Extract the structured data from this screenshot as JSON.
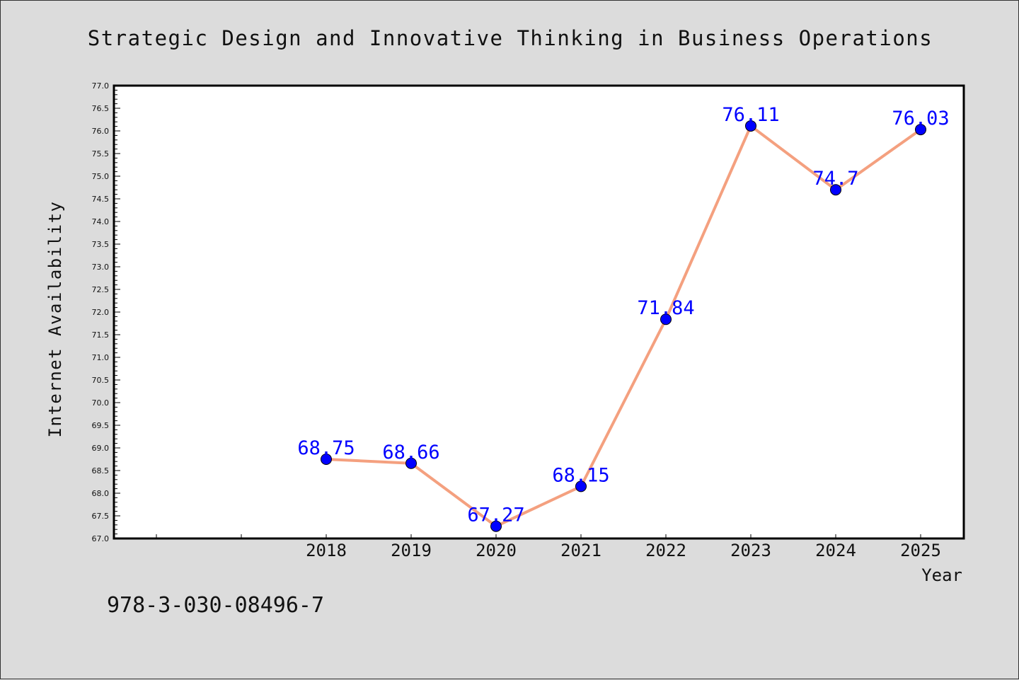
{
  "chart_data": {
    "type": "line",
    "title": "Strategic Design and Innovative Thinking in Business Operations",
    "xlabel": "Year",
    "ylabel": "Internet Availability",
    "x": [
      "2018",
      "2019",
      "2020",
      "2021",
      "2022",
      "2023",
      "2024",
      "2025"
    ],
    "series": [
      {
        "values": [
          68.75,
          68.66,
          67.27,
          68.15,
          71.84,
          76.11,
          74.7,
          76.03
        ],
        "labels": [
          "68.75",
          "68.66",
          "67.27",
          "68.15",
          "71.84",
          "76.11",
          "74.7",
          "76.03"
        ]
      }
    ],
    "ylim": [
      67.0,
      77.0
    ],
    "yticks": [
      "67.0",
      "67.5",
      "68.0",
      "68.5",
      "69.0",
      "69.5",
      "70.0",
      "70.5",
      "71.0",
      "71.5",
      "72.0",
      "72.5",
      "73.0",
      "73.5",
      "74.0",
      "74.5",
      "75.0",
      "75.5",
      "76.0",
      "76.5",
      "77.0"
    ],
    "grid": false,
    "line_color": "#f4a07f",
    "marker_color": "#0000ff",
    "label_color": "#0000ff"
  },
  "footer": {
    "isbn": "978-3-030-08496-7"
  }
}
